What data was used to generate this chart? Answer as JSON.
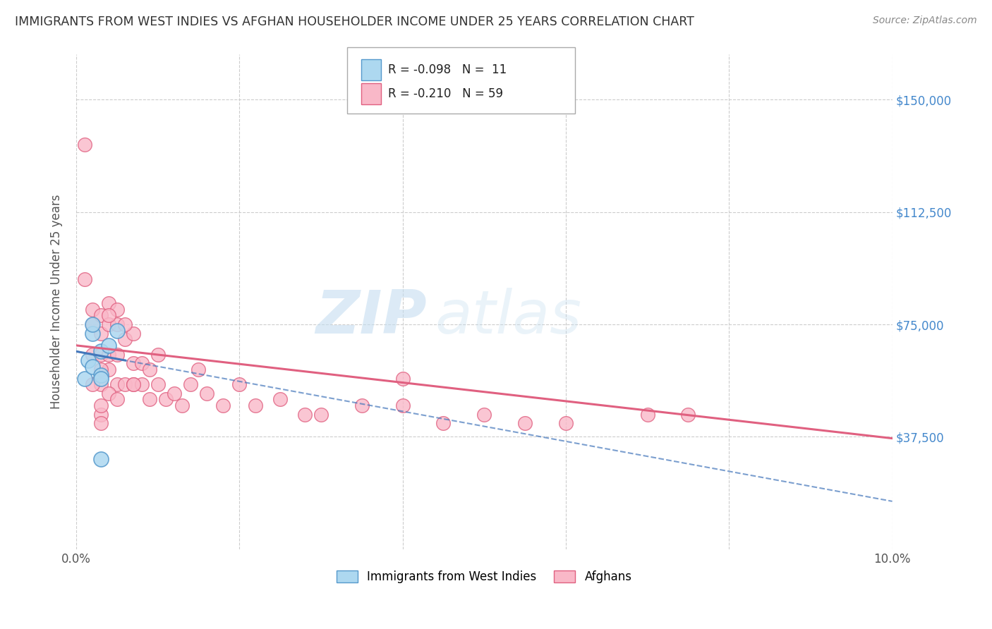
{
  "title": "IMMIGRANTS FROM WEST INDIES VS AFGHAN HOUSEHOLDER INCOME UNDER 25 YEARS CORRELATION CHART",
  "source": "Source: ZipAtlas.com",
  "ylabel": "Householder Income Under 25 years",
  "xlim": [
    0.0,
    0.1
  ],
  "ylim": [
    0,
    165000
  ],
  "yticks": [
    0,
    37500,
    75000,
    112500,
    150000
  ],
  "ytick_labels": [
    "",
    "$37,500",
    "$75,000",
    "$112,500",
    "$150,000"
  ],
  "xticks": [
    0.0,
    0.02,
    0.04,
    0.06,
    0.08,
    0.1
  ],
  "xtick_labels": [
    "0.0%",
    "",
    "",
    "",
    "",
    "10.0%"
  ],
  "blue_color": "#add8f0",
  "pink_color": "#f9b8c8",
  "blue_edge_color": "#5599cc",
  "pink_edge_color": "#e06080",
  "blue_line_color": "#4477bb",
  "pink_line_color": "#e06080",
  "background_color": "#ffffff",
  "grid_color": "#cccccc",
  "title_color": "#333333",
  "axis_label_color": "#555555",
  "tick_label_color_y": "#4488cc",
  "tick_label_color_x": "#555555",
  "watermark_zip_color": "#c5ddf0",
  "watermark_atlas_color": "#c5ddf0",
  "blue_x": [
    0.001,
    0.0015,
    0.002,
    0.002,
    0.003,
    0.003,
    0.003,
    0.004,
    0.005,
    0.003,
    0.002
  ],
  "blue_y": [
    57000,
    63000,
    61000,
    72000,
    66000,
    58000,
    57000,
    68000,
    73000,
    30000,
    75000
  ],
  "pink_x": [
    0.001,
    0.001,
    0.002,
    0.002,
    0.002,
    0.003,
    0.003,
    0.003,
    0.003,
    0.004,
    0.004,
    0.004,
    0.004,
    0.005,
    0.005,
    0.005,
    0.005,
    0.006,
    0.006,
    0.007,
    0.007,
    0.007,
    0.008,
    0.008,
    0.009,
    0.009,
    0.01,
    0.01,
    0.011,
    0.012,
    0.013,
    0.014,
    0.015,
    0.016,
    0.018,
    0.02,
    0.022,
    0.025,
    0.028,
    0.03,
    0.035,
    0.04,
    0.04,
    0.045,
    0.05,
    0.055,
    0.06,
    0.07,
    0.075,
    0.003,
    0.004,
    0.006,
    0.003,
    0.002,
    0.003,
    0.004,
    0.005,
    0.007,
    0.003
  ],
  "pink_y": [
    135000,
    90000,
    80000,
    75000,
    65000,
    78000,
    72000,
    65000,
    55000,
    82000,
    75000,
    65000,
    60000,
    75000,
    65000,
    55000,
    80000,
    70000,
    55000,
    72000,
    62000,
    55000,
    62000,
    55000,
    60000,
    50000,
    65000,
    55000,
    50000,
    52000,
    48000,
    55000,
    60000,
    52000,
    48000,
    55000,
    48000,
    50000,
    45000,
    45000,
    48000,
    57000,
    48000,
    42000,
    45000,
    42000,
    42000,
    45000,
    45000,
    60000,
    78000,
    75000,
    45000,
    55000,
    48000,
    52000,
    50000,
    55000,
    42000
  ]
}
